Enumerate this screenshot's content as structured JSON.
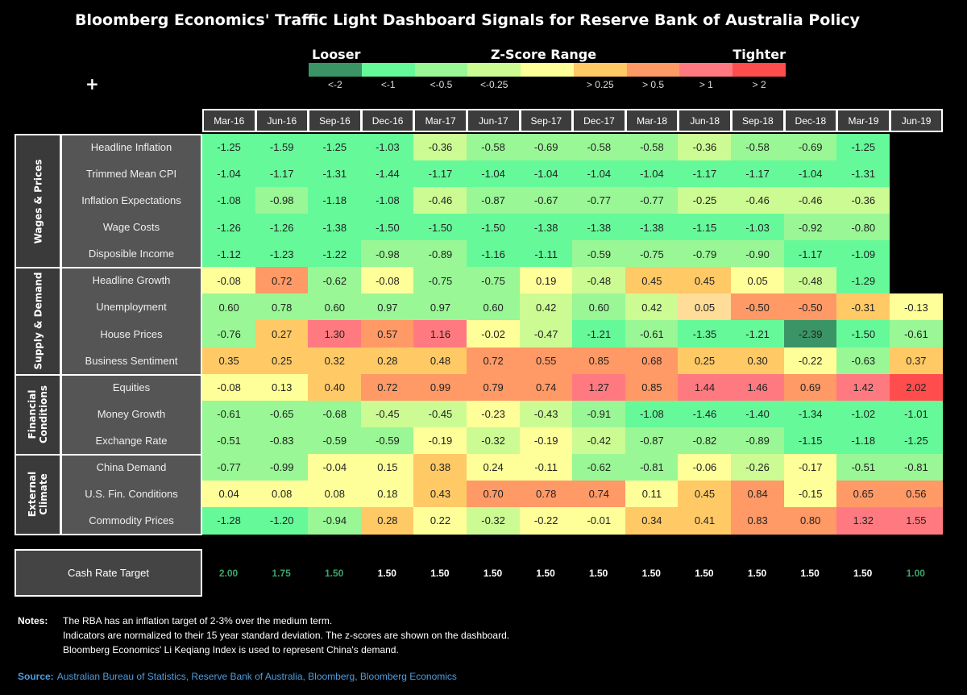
{
  "title": "Bloomberg Economics' Traffic Light Dashboard Signals for Reserve Bank of Australia Policy",
  "legend": {
    "left_label": "Looser",
    "center_label": "Z-Score Range",
    "right_label": "Tighter",
    "bins": [
      {
        "key": "g2",
        "color": "#3a9466",
        "label": "<-2"
      },
      {
        "key": "g1",
        "color": "#66f99a",
        "label": "<-1"
      },
      {
        "key": "g05",
        "color": "#99f796",
        "label": "<-0.5"
      },
      {
        "key": "g025",
        "color": "#ccfb93",
        "label": "<-0.25"
      },
      {
        "key": "y",
        "color": "#ffff99",
        "label": ""
      },
      {
        "key": "o025",
        "color": "#ffc966",
        "label": "> 0.25"
      },
      {
        "key": "o05",
        "color": "#ff9966",
        "label": "> 0.5"
      },
      {
        "key": "r1",
        "color": "#ff7a80",
        "label": "> 1"
      },
      {
        "key": "r2",
        "color": "#ff4d4d",
        "label": "> 2"
      }
    ],
    "extra_colors": {
      "p": "#ffdd99"
    }
  },
  "plus_icon": "+",
  "chart_data": {
    "type": "heatmap",
    "title": "Bloomberg Economics' Traffic Light Dashboard Signals for Reserve Bank of Australia Policy",
    "columns": [
      "Mar-16",
      "Jun-16",
      "Sep-16",
      "Dec-16",
      "Mar-17",
      "Jun-17",
      "Sep-17",
      "Dec-17",
      "Mar-18",
      "Jun-18",
      "Sep-18",
      "Dec-18",
      "Mar-19",
      "Jun-19"
    ],
    "groups": [
      {
        "name": "Wages & Prices",
        "rows": [
          {
            "label": "Headline Inflation",
            "values": [
              "-1.25",
              "-1.59",
              "-1.25",
              "-1.03",
              "-0.36",
              "-0.58",
              "-0.69",
              "-0.58",
              "-0.58",
              "-0.36",
              "-0.58",
              "-0.69",
              "-1.25",
              null
            ],
            "colors": [
              "g1",
              "g1",
              "g1",
              "g1",
              "g025",
              "g05",
              "g05",
              "g05",
              "g05",
              "g025",
              "g05",
              "g05",
              "g1",
              null
            ]
          },
          {
            "label": "Trimmed Mean CPI",
            "values": [
              "-1.04",
              "-1.17",
              "-1.31",
              "-1.44",
              "-1.17",
              "-1.04",
              "-1.04",
              "-1.04",
              "-1.04",
              "-1.17",
              "-1.17",
              "-1.04",
              "-1.31",
              null
            ],
            "colors": [
              "g1",
              "g1",
              "g1",
              "g1",
              "g1",
              "g1",
              "g1",
              "g1",
              "g1",
              "g1",
              "g1",
              "g1",
              "g1",
              null
            ]
          },
          {
            "label": "Inflation Expectations",
            "values": [
              "-1.08",
              "-0.98",
              "-1.18",
              "-1.08",
              "-0.46",
              "-0.87",
              "-0.67",
              "-0.77",
              "-0.77",
              "-0.25",
              "-0.46",
              "-0.46",
              "-0.36",
              null
            ],
            "colors": [
              "g1",
              "g05",
              "g1",
              "g1",
              "g025",
              "g05",
              "g05",
              "g05",
              "g05",
              "g025",
              "g025",
              "g025",
              "g025",
              null
            ]
          },
          {
            "label": "Wage Costs",
            "values": [
              "-1.26",
              "-1.26",
              "-1.38",
              "-1.50",
              "-1.50",
              "-1.50",
              "-1.38",
              "-1.38",
              "-1.38",
              "-1.15",
              "-1.03",
              "-0.92",
              "-0.80",
              null
            ],
            "colors": [
              "g1",
              "g1",
              "g1",
              "g1",
              "g1",
              "g1",
              "g1",
              "g1",
              "g1",
              "g1",
              "g1",
              "g05",
              "g05",
              null
            ]
          },
          {
            "label": "Disposible Income",
            "values": [
              "-1.12",
              "-1.23",
              "-1.22",
              "-0.98",
              "-0.89",
              "-1.16",
              "-1.11",
              "-0.59",
              "-0.75",
              "-0.79",
              "-0.90",
              "-1.17",
              "-1.09",
              null
            ],
            "colors": [
              "g1",
              "g1",
              "g1",
              "g05",
              "g05",
              "g1",
              "g1",
              "g05",
              "g05",
              "g05",
              "g05",
              "g1",
              "g1",
              null
            ]
          }
        ]
      },
      {
        "name": "Supply & Demand",
        "rows": [
          {
            "label": "Headline Growth",
            "values": [
              "-0.08",
              "0.72",
              "-0.62",
              "-0.08",
              "-0.75",
              "-0.75",
              "0.19",
              "-0.48",
              "0.45",
              "0.45",
              "0.05",
              "-0.48",
              "-1.29",
              null
            ],
            "colors": [
              "y",
              "o05",
              "g05",
              "y",
              "g05",
              "g05",
              "y",
              "g025",
              "o025",
              "o025",
              "y",
              "g025",
              "g1",
              null
            ]
          },
          {
            "label": "Unemployment",
            "values": [
              "0.60",
              "0.78",
              "0.60",
              "0.97",
              "0.97",
              "0.60",
              "0.42",
              "0.60",
              "0.42",
              "0.05",
              "-0.50",
              "-0.50",
              "-0.31",
              "-0.13"
            ],
            "colors": [
              "g05",
              "g05",
              "g05",
              "g05",
              "g05",
              "g05",
              "g025",
              "g05",
              "g025",
              "p",
              "o05",
              "o05",
              "o025",
              "y"
            ]
          },
          {
            "label": "House Prices",
            "values": [
              "-0.76",
              "0.27",
              "1.30",
              "0.57",
              "1.16",
              "-0.02",
              "-0.47",
              "-1.21",
              "-0.61",
              "-1.35",
              "-1.21",
              "-2.39",
              "-1.50",
              "-0.61"
            ],
            "colors": [
              "g05",
              "o025",
              "r1",
              "o05",
              "r1",
              "y",
              "g025",
              "g1",
              "g05",
              "g1",
              "g1",
              "g2",
              "g1",
              "g05"
            ]
          },
          {
            "label": "Business Sentiment",
            "values": [
              "0.35",
              "0.25",
              "0.32",
              "0.28",
              "0.48",
              "0.72",
              "0.55",
              "0.85",
              "0.68",
              "0.25",
              "0.30",
              "-0.22",
              "-0.63",
              "0.37"
            ],
            "colors": [
              "o025",
              "o025",
              "o025",
              "o025",
              "o025",
              "o05",
              "o05",
              "o05",
              "o05",
              "o025",
              "o025",
              "y",
              "g05",
              "o025"
            ]
          }
        ]
      },
      {
        "name": "Financial\nConditions",
        "rows": [
          {
            "label": "Equities",
            "values": [
              "-0.08",
              "0.13",
              "0.40",
              "0.72",
              "0.99",
              "0.79",
              "0.74",
              "1.27",
              "0.85",
              "1.44",
              "1.46",
              "0.69",
              "1.42",
              "2.02"
            ],
            "colors": [
              "y",
              "y",
              "o025",
              "o05",
              "o05",
              "o05",
              "o05",
              "r1",
              "o05",
              "r1",
              "r1",
              "o05",
              "r1",
              "r2"
            ]
          },
          {
            "label": "Money Growth",
            "values": [
              "-0.61",
              "-0.65",
              "-0.68",
              "-0.45",
              "-0.45",
              "-0.23",
              "-0.43",
              "-0.91",
              "-1.08",
              "-1.46",
              "-1.40",
              "-1.34",
              "-1.02",
              "-1.01"
            ],
            "colors": [
              "g05",
              "g05",
              "g05",
              "g025",
              "g025",
              "y",
              "g025",
              "g05",
              "g1",
              "g1",
              "g1",
              "g1",
              "g1",
              "g1"
            ]
          },
          {
            "label": "Exchange Rate",
            "values": [
              "-0.51",
              "-0.83",
              "-0.59",
              "-0.59",
              "-0.19",
              "-0.32",
              "-0.19",
              "-0.42",
              "-0.87",
              "-0.82",
              "-0.89",
              "-1.15",
              "-1.18",
              "-1.25"
            ],
            "colors": [
              "g05",
              "g05",
              "g05",
              "g05",
              "y",
              "g025",
              "y",
              "g025",
              "g05",
              "g05",
              "g05",
              "g1",
              "g1",
              "g1"
            ]
          }
        ]
      },
      {
        "name": "External\nClimate",
        "rows": [
          {
            "label": "China Demand",
            "values": [
              "-0.77",
              "-0.99",
              "-0.04",
              "0.15",
              "0.38",
              "0.24",
              "-0.11",
              "-0.62",
              "-0.81",
              "-0.06",
              "-0.26",
              "-0.17",
              "-0.51",
              "-0.81"
            ],
            "colors": [
              "g05",
              "g05",
              "y",
              "y",
              "o025",
              "y",
              "y",
              "g05",
              "g05",
              "y",
              "g025",
              "y",
              "g05",
              "g05"
            ]
          },
          {
            "label": "U.S. Fin. Conditions",
            "values": [
              "0.04",
              "0.08",
              "0.08",
              "0.18",
              "0.43",
              "0.70",
              "0.78",
              "0.74",
              "0.11",
              "0.45",
              "0.84",
              "-0.15",
              "0.65",
              "0.56"
            ],
            "colors": [
              "y",
              "y",
              "y",
              "y",
              "o025",
              "o05",
              "o05",
              "o05",
              "y",
              "o025",
              "o05",
              "y",
              "o05",
              "o05"
            ]
          },
          {
            "label": "Commodity Prices",
            "values": [
              "-1.28",
              "-1.20",
              "-0.94",
              "0.28",
              "0.22",
              "-0.32",
              "-0.22",
              "-0.01",
              "0.34",
              "0.41",
              "0.83",
              "0.80",
              "1.32",
              "1.55"
            ],
            "colors": [
              "g1",
              "g1",
              "g05",
              "o025",
              "y",
              "g025",
              "y",
              "y",
              "o025",
              "o025",
              "o05",
              "o05",
              "r1",
              "r1"
            ]
          }
        ]
      }
    ]
  },
  "cash_rate": {
    "label": "Cash Rate Target",
    "values": [
      "2.00",
      "1.75",
      "1.50",
      "1.50",
      "1.50",
      "1.50",
      "1.50",
      "1.50",
      "1.50",
      "1.50",
      "1.50",
      "1.50",
      "1.50",
      "1.00"
    ],
    "changed": [
      true,
      true,
      true,
      false,
      false,
      false,
      false,
      false,
      false,
      false,
      false,
      false,
      false,
      true
    ],
    "changed_color": "#3aa66a"
  },
  "notes": {
    "label": "Notes:",
    "lines": [
      "The RBA has an inflation target of 2-3% over the medium term.",
      "Indicators are normalized to their 15 year standard deviation. The z-scores are shown on the dashboard.",
      "Bloomberg Economics' Li Keqiang Index is used to represent China's demand."
    ]
  },
  "source": {
    "label": "Source:",
    "text": "Australian Bureau of Statistics, Reserve Bank of Australia, Bloomberg, Bloomberg Economics"
  }
}
